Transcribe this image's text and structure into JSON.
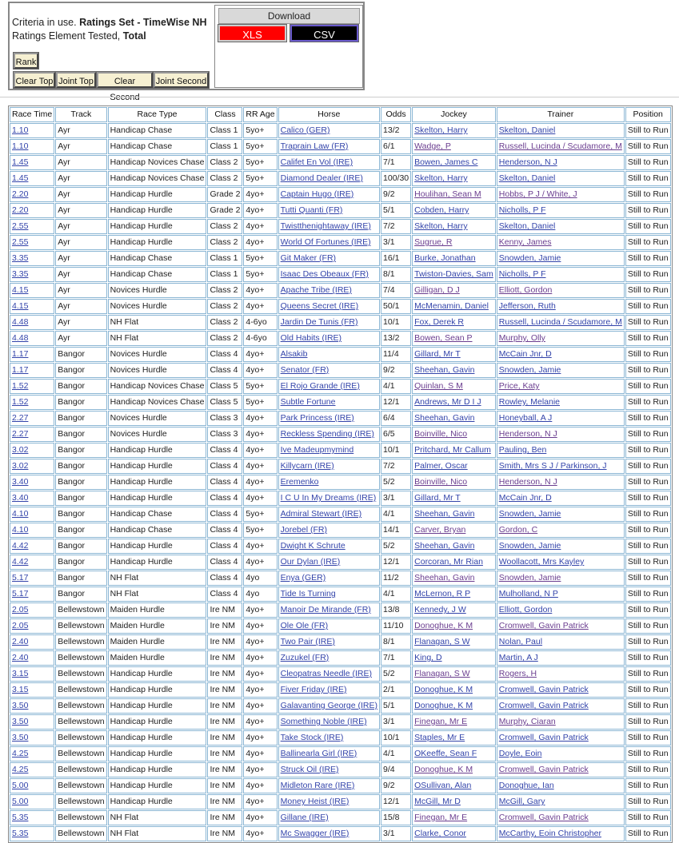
{
  "criteria": {
    "line1_label": "Criteria in use.",
    "line1_value": "Ratings Set - TimeWise NH",
    "line2_label": "Ratings Element Tested,",
    "line2_value": "Total"
  },
  "buttons": {
    "rank": "Rank",
    "clear_top": "Clear Top",
    "joint_top": "Joint Top",
    "clear_second": "Clear Second",
    "joint_second": "Joint Second"
  },
  "download": {
    "title": "Download",
    "xls": "XLS",
    "csv": "CSV"
  },
  "table": {
    "headers": [
      "Race Time",
      "Track",
      "Race Type",
      "Class",
      "RR Age",
      "Horse",
      "Odds",
      "Jockey",
      "Trainer",
      "Position"
    ],
    "rows": [
      [
        "1.10",
        "Ayr",
        "Handicap Chase",
        "Class 1",
        "5yo+",
        "Calico (GER)",
        "13/2",
        "Skelton, Harry",
        "Skelton, Daniel",
        "Still to Run"
      ],
      [
        "1.10",
        "Ayr",
        "Handicap Chase",
        "Class 1",
        "5yo+",
        "Traprain Law (FR)",
        "6/1",
        "Wadge, P",
        "Russell, Lucinda / Scudamore, M",
        "Still to Run"
      ],
      [
        "1.45",
        "Ayr",
        "Handicap Novices Chase",
        "Class 2",
        "5yo+",
        "Califet En Vol (IRE)",
        "7/1",
        "Bowen, James C",
        "Henderson, N J",
        "Still to Run"
      ],
      [
        "1.45",
        "Ayr",
        "Handicap Novices Chase",
        "Class 2",
        "5yo+",
        "Diamond Dealer (IRE)",
        "100/30",
        "Skelton, Harry",
        "Skelton, Daniel",
        "Still to Run"
      ],
      [
        "2.20",
        "Ayr",
        "Handicap Hurdle",
        "Grade 2",
        "4yo+",
        "Captain Hugo (IRE)",
        "9/2",
        "Houlihan, Sean M",
        "Hobbs, P J / White, J",
        "Still to Run"
      ],
      [
        "2.20",
        "Ayr",
        "Handicap Hurdle",
        "Grade 2",
        "4yo+",
        "Tutti Quanti (FR)",
        "5/1",
        "Cobden, Harry",
        "Nicholls, P F",
        "Still to Run"
      ],
      [
        "2.55",
        "Ayr",
        "Handicap Hurdle",
        "Class 2",
        "4yo+",
        "Twistthenightaway (IRE)",
        "7/2",
        "Skelton, Harry",
        "Skelton, Daniel",
        "Still to Run"
      ],
      [
        "2.55",
        "Ayr",
        "Handicap Hurdle",
        "Class 2",
        "4yo+",
        "World Of Fortunes (IRE)",
        "3/1",
        "Sugrue, R",
        "Kenny, James",
        "Still to Run"
      ],
      [
        "3.35",
        "Ayr",
        "Handicap Chase",
        "Class 1",
        "5yo+",
        "Git Maker (FR)",
        "16/1",
        "Burke, Jonathan",
        "Snowden, Jamie",
        "Still to Run"
      ],
      [
        "3.35",
        "Ayr",
        "Handicap Chase",
        "Class 1",
        "5yo+",
        "Isaac Des Obeaux (FR)",
        "8/1",
        "Twiston-Davies, Sam",
        "Nicholls, P F",
        "Still to Run"
      ],
      [
        "4.15",
        "Ayr",
        "Novices Hurdle",
        "Class 2",
        "4yo+",
        "Apache Tribe (IRE)",
        "7/4",
        "Gilligan, D J",
        "Elliott, Gordon",
        "Still to Run"
      ],
      [
        "4.15",
        "Ayr",
        "Novices Hurdle",
        "Class 2",
        "4yo+",
        "Queens Secret (IRE)",
        "50/1",
        "McMenamin, Daniel",
        "Jefferson, Ruth",
        "Still to Run"
      ],
      [
        "4.48",
        "Ayr",
        "NH Flat",
        "Class 2",
        "4-6yo",
        "Jardin De Tunis (FR)",
        "10/1",
        "Fox, Derek R",
        "Russell, Lucinda / Scudamore, M",
        "Still to Run"
      ],
      [
        "4.48",
        "Ayr",
        "NH Flat",
        "Class 2",
        "4-6yo",
        "Old Habits (IRE)",
        "13/2",
        "Bowen, Sean P",
        "Murphy, Olly",
        "Still to Run"
      ],
      [
        "1.17",
        "Bangor",
        "Novices Hurdle",
        "Class 4",
        "4yo+",
        "Alsakib",
        "11/4",
        "Gillard, Mr T",
        "McCain Jnr, D",
        "Still to Run"
      ],
      [
        "1.17",
        "Bangor",
        "Novices Hurdle",
        "Class 4",
        "4yo+",
        "Senator (FR)",
        "9/2",
        "Sheehan, Gavin",
        "Snowden, Jamie",
        "Still to Run"
      ],
      [
        "1.52",
        "Bangor",
        "Handicap Novices Chase",
        "Class 5",
        "5yo+",
        "El Rojo Grande (IRE)",
        "4/1",
        "Quinlan, S M",
        "Price, Katy",
        "Still to Run"
      ],
      [
        "1.52",
        "Bangor",
        "Handicap Novices Chase",
        "Class 5",
        "5yo+",
        "Subtle Fortune",
        "12/1",
        "Andrews, Mr D I J",
        "Rowley, Melanie",
        "Still to Run"
      ],
      [
        "2.27",
        "Bangor",
        "Novices Hurdle",
        "Class 3",
        "4yo+",
        "Park Princess (IRE)",
        "6/4",
        "Sheehan, Gavin",
        "Honeyball, A J",
        "Still to Run"
      ],
      [
        "2.27",
        "Bangor",
        "Novices Hurdle",
        "Class 3",
        "4yo+",
        "Reckless Spending (IRE)",
        "6/5",
        "Boinville, Nico",
        "Henderson, N J",
        "Still to Run"
      ],
      [
        "3.02",
        "Bangor",
        "Handicap Hurdle",
        "Class 4",
        "4yo+",
        "Ive Madeupmymind",
        "10/1",
        "Pritchard, Mr Callum",
        "Pauling, Ben",
        "Still to Run"
      ],
      [
        "3.02",
        "Bangor",
        "Handicap Hurdle",
        "Class 4",
        "4yo+",
        "Killycarn (IRE)",
        "7/2",
        "Palmer, Oscar",
        "Smith, Mrs S J / Parkinson, J",
        "Still to Run"
      ],
      [
        "3.40",
        "Bangor",
        "Handicap Hurdle",
        "Class 4",
        "4yo+",
        "Eremenko",
        "5/2",
        "Boinville, Nico",
        "Henderson, N J",
        "Still to Run"
      ],
      [
        "3.40",
        "Bangor",
        "Handicap Hurdle",
        "Class 4",
        "4yo+",
        "I C U In My Dreams (IRE)",
        "3/1",
        "Gillard, Mr T",
        "McCain Jnr, D",
        "Still to Run"
      ],
      [
        "4.10",
        "Bangor",
        "Handicap Chase",
        "Class 4",
        "5yo+",
        "Admiral Stewart (IRE)",
        "4/1",
        "Sheehan, Gavin",
        "Snowden, Jamie",
        "Still to Run"
      ],
      [
        "4.10",
        "Bangor",
        "Handicap Chase",
        "Class 4",
        "5yo+",
        "Jorebel (FR)",
        "14/1",
        "Carver, Bryan",
        "Gordon, C",
        "Still to Run"
      ],
      [
        "4.42",
        "Bangor",
        "Handicap Hurdle",
        "Class 4",
        "4yo+",
        "Dwight K Schrute",
        "5/2",
        "Sheehan, Gavin",
        "Snowden, Jamie",
        "Still to Run"
      ],
      [
        "4.42",
        "Bangor",
        "Handicap Hurdle",
        "Class 4",
        "4yo+",
        "Our Dylan (IRE)",
        "12/1",
        "Corcoran, Mr Rian",
        "Woollacott, Mrs Kayley",
        "Still to Run"
      ],
      [
        "5.17",
        "Bangor",
        "NH Flat",
        "Class 4",
        "4yo",
        "Enya (GER)",
        "11/2",
        "Sheehan, Gavin",
        "Snowden, Jamie",
        "Still to Run"
      ],
      [
        "5.17",
        "Bangor",
        "NH Flat",
        "Class 4",
        "4yo",
        "Tide Is Turning",
        "4/1",
        "McLernon, R P",
        "Mulholland, N P",
        "Still to Run"
      ],
      [
        "2.05",
        "Bellewstown",
        "Maiden Hurdle",
        "Ire NM",
        "4yo+",
        "Manoir De Mirande (FR)",
        "13/8",
        "Kennedy, J W",
        "Elliott, Gordon",
        "Still to Run"
      ],
      [
        "2.05",
        "Bellewstown",
        "Maiden Hurdle",
        "Ire NM",
        "4yo+",
        "Ole Ole (FR)",
        "11/10",
        "Donoghue, K M",
        "Cromwell, Gavin Patrick",
        "Still to Run"
      ],
      [
        "2.40",
        "Bellewstown",
        "Maiden Hurdle",
        "Ire NM",
        "4yo+",
        "Two Pair (IRE)",
        "8/1",
        "Flanagan, S W",
        "Nolan, Paul",
        "Still to Run"
      ],
      [
        "2.40",
        "Bellewstown",
        "Maiden Hurdle",
        "Ire NM",
        "4yo+",
        "Zuzukel (FR)",
        "7/1",
        "King, D",
        "Martin, A J",
        "Still to Run"
      ],
      [
        "3.15",
        "Bellewstown",
        "Handicap Hurdle",
        "Ire NM",
        "4yo+",
        "Cleopatras Needle (IRE)",
        "5/2",
        "Flanagan, S W",
        "Rogers, H",
        "Still to Run"
      ],
      [
        "3.15",
        "Bellewstown",
        "Handicap Hurdle",
        "Ire NM",
        "4yo+",
        "Fiver Friday (IRE)",
        "2/1",
        "Donoghue, K M",
        "Cromwell, Gavin Patrick",
        "Still to Run"
      ],
      [
        "3.50",
        "Bellewstown",
        "Handicap Hurdle",
        "Ire NM",
        "4yo+",
        "Galavanting George (IRE)",
        "5/1",
        "Donoghue, K M",
        "Cromwell, Gavin Patrick",
        "Still to Run"
      ],
      [
        "3.50",
        "Bellewstown",
        "Handicap Hurdle",
        "Ire NM",
        "4yo+",
        "Something Noble (IRE)",
        "3/1",
        "Finegan, Mr E",
        "Murphy, Ciaran",
        "Still to Run"
      ],
      [
        "3.50",
        "Bellewstown",
        "Handicap Hurdle",
        "Ire NM",
        "4yo+",
        "Take Stock (IRE)",
        "10/1",
        "Staples, Mr E",
        "Cromwell, Gavin Patrick",
        "Still to Run"
      ],
      [
        "4.25",
        "Bellewstown",
        "Handicap Hurdle",
        "Ire NM",
        "4yo+",
        "Ballinearla Girl (IRE)",
        "4/1",
        "OKeeffe, Sean F",
        "Doyle, Eoin",
        "Still to Run"
      ],
      [
        "4.25",
        "Bellewstown",
        "Handicap Hurdle",
        "Ire NM",
        "4yo+",
        "Struck Oil (IRE)",
        "9/4",
        "Donoghue, K M",
        "Cromwell, Gavin Patrick",
        "Still to Run"
      ],
      [
        "5.00",
        "Bellewstown",
        "Handicap Hurdle",
        "Ire NM",
        "4yo+",
        "Midleton Rare (IRE)",
        "9/2",
        "OSullivan, Alan",
        "Donoghue, Ian",
        "Still to Run"
      ],
      [
        "5.00",
        "Bellewstown",
        "Handicap Hurdle",
        "Ire NM",
        "4yo+",
        "Money Heist (IRE)",
        "12/1",
        "McGill, Mr D",
        "McGill, Gary",
        "Still to Run"
      ],
      [
        "5.35",
        "Bellewstown",
        "NH Flat",
        "Ire NM",
        "4yo+",
        "Gillane (IRE)",
        "15/8",
        "Finegan, Mr E",
        "Cromwell, Gavin Patrick",
        "Still to Run"
      ],
      [
        "5.35",
        "Bellewstown",
        "NH Flat",
        "Ire NM",
        "4yo+",
        "Mc Swagger (IRE)",
        "3/1",
        "Clarke, Conor",
        "McCarthy, Eoin Christopher",
        "Still to Run"
      ]
    ]
  }
}
